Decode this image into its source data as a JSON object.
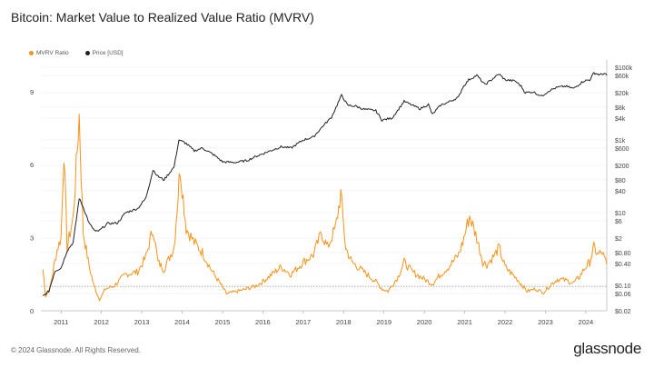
{
  "header": {
    "title": "Bitcoin: Market Value to Realized Value Ratio (MVRV)"
  },
  "footer": {
    "copyright": "© 2024 Glassnode. All Rights Reserved.",
    "logo": "glassnode"
  },
  "chart_data": {
    "type": "line",
    "title": "Bitcoin: Market Value to Realized Value Ratio (MVRV)",
    "legend": [
      {
        "name": "MVRV Ratio",
        "color": "#f7931a"
      },
      {
        "name": "Price [USD]",
        "color": "#222222"
      }
    ],
    "legend_placement": "top-left",
    "x_ticks": [
      "2011",
      "2012",
      "2013",
      "2014",
      "2015",
      "2016",
      "2017",
      "2018",
      "2019",
      "2020",
      "2021",
      "2022",
      "2023",
      "2024"
    ],
    "xlim": [
      2010.5,
      2024.52
    ],
    "left_axis": {
      "ticks": [
        "0",
        "3",
        "6",
        "9"
      ],
      "tick_values": [
        0,
        3,
        6,
        9
      ],
      "ylim": [
        0,
        10.3
      ]
    },
    "right_axis": {
      "scale": "log",
      "ticks": [
        "$100k",
        "$60k",
        "$20k",
        "$8k",
        "$4k",
        "$1k",
        "$600",
        "$200",
        "$80",
        "$40",
        "$10",
        "$6",
        "$2",
        "$0.80",
        "$0.40",
        "$0.10",
        "$0.06",
        "$0.02"
      ],
      "tick_values": [
        100000,
        60000,
        20000,
        8000,
        4000,
        1000,
        600,
        200,
        80,
        40,
        10,
        6,
        2,
        0.8,
        0.4,
        0.1,
        0.06,
        0.02
      ],
      "ylim": [
        0.02,
        100000
      ]
    },
    "reference_line": {
      "series": "MVRV Ratio",
      "value": 1,
      "style": "dotted"
    },
    "series": [
      {
        "name": "MVRV Ratio",
        "axis": "left",
        "color": "#f7931a",
        "points": [
          [
            2010.55,
            1.7
          ],
          [
            2010.62,
            0.6
          ],
          [
            2010.72,
            0.9
          ],
          [
            2010.9,
            2.5
          ],
          [
            2011.0,
            3.0
          ],
          [
            2011.07,
            6.6
          ],
          [
            2011.15,
            2.6
          ],
          [
            2011.3,
            3.8
          ],
          [
            2011.45,
            8.0
          ],
          [
            2011.55,
            3.2
          ],
          [
            2011.7,
            1.8
          ],
          [
            2011.82,
            1.0
          ],
          [
            2011.95,
            0.45
          ],
          [
            2012.1,
            0.9
          ],
          [
            2012.3,
            1.0
          ],
          [
            2012.6,
            1.5
          ],
          [
            2012.9,
            1.6
          ],
          [
            2013.1,
            2.2
          ],
          [
            2013.28,
            3.4
          ],
          [
            2013.4,
            2.0
          ],
          [
            2013.55,
            1.7
          ],
          [
            2013.8,
            2.6
          ],
          [
            2013.95,
            5.9
          ],
          [
            2014.1,
            3.4
          ],
          [
            2014.3,
            2.8
          ],
          [
            2014.5,
            2.4
          ],
          [
            2014.75,
            1.6
          ],
          [
            2014.95,
            1.1
          ],
          [
            2015.1,
            0.7
          ],
          [
            2015.5,
            0.85
          ],
          [
            2015.8,
            1.0
          ],
          [
            2016.0,
            1.2
          ],
          [
            2016.45,
            1.8
          ],
          [
            2016.7,
            1.5
          ],
          [
            2017.0,
            2.0
          ],
          [
            2017.25,
            2.3
          ],
          [
            2017.45,
            3.2
          ],
          [
            2017.6,
            2.6
          ],
          [
            2017.8,
            3.4
          ],
          [
            2017.93,
            4.8
          ],
          [
            2018.05,
            2.6
          ],
          [
            2018.2,
            2.0
          ],
          [
            2018.5,
            1.6
          ],
          [
            2018.8,
            1.2
          ],
          [
            2018.95,
            0.9
          ],
          [
            2019.1,
            0.8
          ],
          [
            2019.35,
            1.4
          ],
          [
            2019.5,
            2.0
          ],
          [
            2019.7,
            1.6
          ],
          [
            2019.9,
            1.4
          ],
          [
            2020.2,
            1.1
          ],
          [
            2020.35,
            1.4
          ],
          [
            2020.6,
            1.8
          ],
          [
            2020.85,
            2.3
          ],
          [
            2020.95,
            2.8
          ],
          [
            2021.12,
            3.9
          ],
          [
            2021.3,
            3.0
          ],
          [
            2021.45,
            2.0
          ],
          [
            2021.55,
            1.9
          ],
          [
            2021.75,
            2.3
          ],
          [
            2021.85,
            2.6
          ],
          [
            2022.0,
            1.8
          ],
          [
            2022.3,
            1.3
          ],
          [
            2022.45,
            1.0
          ],
          [
            2022.55,
            0.8
          ],
          [
            2022.75,
            0.9
          ],
          [
            2022.95,
            0.75
          ],
          [
            2023.15,
            1.1
          ],
          [
            2023.3,
            1.3
          ],
          [
            2023.5,
            1.25
          ],
          [
            2023.7,
            1.15
          ],
          [
            2023.85,
            1.4
          ],
          [
            2023.95,
            1.7
          ],
          [
            2024.1,
            2.0
          ],
          [
            2024.2,
            2.6
          ],
          [
            2024.3,
            2.3
          ],
          [
            2024.4,
            2.4
          ],
          [
            2024.52,
            1.9
          ]
        ]
      },
      {
        "name": "Price [USD]",
        "axis": "right",
        "color": "#222222",
        "points": [
          [
            2010.55,
            0.05
          ],
          [
            2010.7,
            0.07
          ],
          [
            2010.85,
            0.25
          ],
          [
            2011.0,
            0.3
          ],
          [
            2011.15,
            0.9
          ],
          [
            2011.3,
            1.5
          ],
          [
            2011.45,
            25
          ],
          [
            2011.55,
            14
          ],
          [
            2011.7,
            5
          ],
          [
            2011.85,
            3
          ],
          [
            2011.95,
            3.2
          ],
          [
            2012.15,
            5
          ],
          [
            2012.4,
            5.2
          ],
          [
            2012.6,
            10
          ],
          [
            2012.9,
            13
          ],
          [
            2013.1,
            25
          ],
          [
            2013.28,
            150
          ],
          [
            2013.4,
            100
          ],
          [
            2013.55,
            80
          ],
          [
            2013.8,
            180
          ],
          [
            2013.92,
            1000
          ],
          [
            2014.1,
            800
          ],
          [
            2014.3,
            500
          ],
          [
            2014.5,
            600
          ],
          [
            2014.8,
            380
          ],
          [
            2015.0,
            250
          ],
          [
            2015.3,
            240
          ],
          [
            2015.6,
            270
          ],
          [
            2015.85,
            360
          ],
          [
            2016.0,
            420
          ],
          [
            2016.45,
            650
          ],
          [
            2016.7,
            600
          ],
          [
            2017.0,
            1000
          ],
          [
            2017.25,
            1200
          ],
          [
            2017.5,
            2500
          ],
          [
            2017.7,
            4200
          ],
          [
            2017.95,
            17000
          ],
          [
            2018.1,
            9000
          ],
          [
            2018.3,
            8500
          ],
          [
            2018.5,
            7000
          ],
          [
            2018.8,
            6400
          ],
          [
            2018.95,
            3500
          ],
          [
            2019.2,
            4000
          ],
          [
            2019.5,
            11500
          ],
          [
            2019.7,
            9000
          ],
          [
            2019.9,
            7200
          ],
          [
            2020.1,
            9500
          ],
          [
            2020.2,
            5000
          ],
          [
            2020.4,
            9000
          ],
          [
            2020.6,
            11000
          ],
          [
            2020.85,
            15000
          ],
          [
            2020.95,
            28000
          ],
          [
            2021.1,
            45000
          ],
          [
            2021.3,
            60000
          ],
          [
            2021.5,
            33000
          ],
          [
            2021.6,
            40000
          ],
          [
            2021.85,
            65000
          ],
          [
            2022.0,
            45000
          ],
          [
            2022.25,
            42000
          ],
          [
            2022.4,
            30000
          ],
          [
            2022.5,
            20000
          ],
          [
            2022.7,
            21000
          ],
          [
            2022.9,
            16000
          ],
          [
            2023.1,
            23000
          ],
          [
            2023.3,
            28000
          ],
          [
            2023.5,
            30000
          ],
          [
            2023.7,
            26000
          ],
          [
            2023.85,
            35000
          ],
          [
            2023.95,
            42000
          ],
          [
            2024.1,
            45000
          ],
          [
            2024.2,
            70000
          ],
          [
            2024.35,
            62000
          ],
          [
            2024.45,
            67000
          ],
          [
            2024.52,
            60000
          ]
        ]
      }
    ]
  }
}
